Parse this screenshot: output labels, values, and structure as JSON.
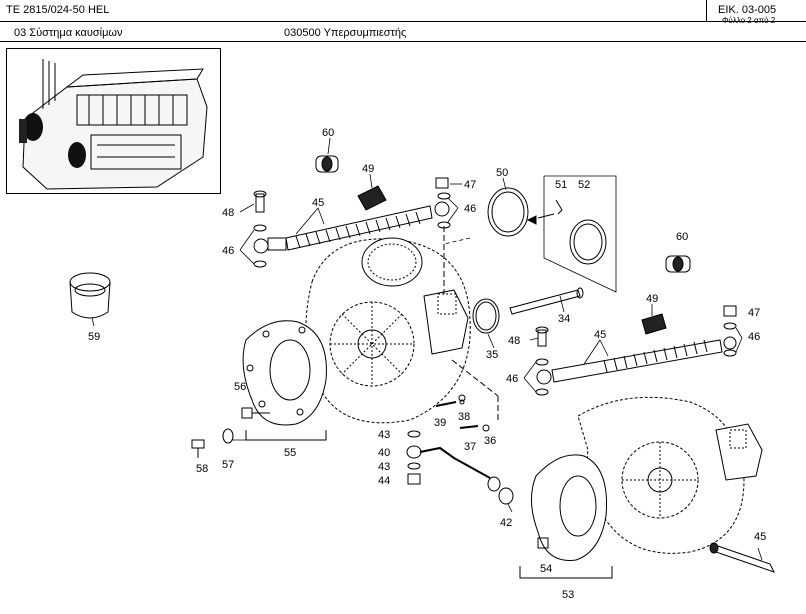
{
  "header": {
    "model": "TE 2815/024-50 HEL",
    "figure": "ΕΙΚ. 03-005",
    "sheet": "Φύλλο 2 από 2",
    "system": "03  Σύστημα καυσίμων",
    "assembly": "030500  Υπερσυμπιεστής"
  },
  "callouts": [
    {
      "id": "c60a",
      "text": "60"
    },
    {
      "id": "c49a",
      "text": "49"
    },
    {
      "id": "c50",
      "text": "50"
    },
    {
      "id": "c51",
      "text": "51"
    },
    {
      "id": "c52",
      "text": "52"
    },
    {
      "id": "c47a",
      "text": "47"
    },
    {
      "id": "c48a",
      "text": "48"
    },
    {
      "id": "c45a",
      "text": "45"
    },
    {
      "id": "c46a",
      "text": "46"
    },
    {
      "id": "c46b",
      "text": "46"
    },
    {
      "id": "c60b",
      "text": "60"
    },
    {
      "id": "c59",
      "text": "59"
    },
    {
      "id": "c49b",
      "text": "49"
    },
    {
      "id": "c47b",
      "text": "47"
    },
    {
      "id": "c34",
      "text": "34"
    },
    {
      "id": "c35",
      "text": "35"
    },
    {
      "id": "c48b",
      "text": "48"
    },
    {
      "id": "c45b",
      "text": "45"
    },
    {
      "id": "c46c",
      "text": "46"
    },
    {
      "id": "c46d",
      "text": "46"
    },
    {
      "id": "c56",
      "text": "56"
    },
    {
      "id": "c39",
      "text": "39"
    },
    {
      "id": "c38",
      "text": "38"
    },
    {
      "id": "c43a",
      "text": "43"
    },
    {
      "id": "c37",
      "text": "37"
    },
    {
      "id": "c36",
      "text": "36"
    },
    {
      "id": "c55",
      "text": "55"
    },
    {
      "id": "c58",
      "text": "58"
    },
    {
      "id": "c57",
      "text": "57"
    },
    {
      "id": "c40",
      "text": "40"
    },
    {
      "id": "c43b",
      "text": "43"
    },
    {
      "id": "c44",
      "text": "44"
    },
    {
      "id": "c42",
      "text": "42"
    },
    {
      "id": "c54",
      "text": "54"
    },
    {
      "id": "c53",
      "text": "53"
    },
    {
      "id": "c45c",
      "text": "45"
    }
  ]
}
